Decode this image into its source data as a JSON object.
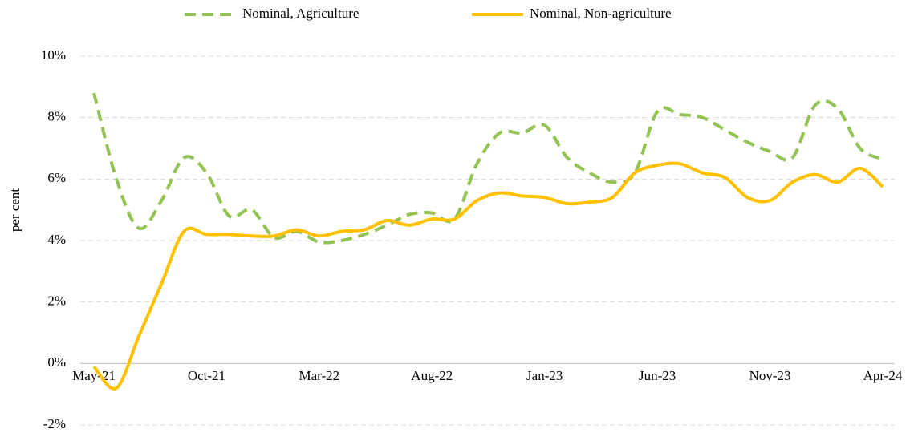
{
  "chart_data": {
    "type": "line",
    "y_label": "per cent",
    "categories": [
      "May-21",
      null,
      null,
      null,
      null,
      "Oct-21",
      null,
      null,
      null,
      null,
      "Mar-22",
      null,
      null,
      null,
      null,
      "Aug-22",
      null,
      null,
      null,
      null,
      "Jan-23",
      null,
      null,
      null,
      null,
      "Jun-23",
      null,
      null,
      null,
      null,
      "Nov-23",
      null,
      null,
      null,
      null,
      "Apr-24"
    ],
    "series": [
      {
        "name": "Nominal, Agriculture",
        "color": "#92c353",
        "dashed": true,
        "values": [
          8.8,
          6.0,
          4.4,
          5.3,
          6.7,
          6.2,
          4.8,
          5.0,
          4.1,
          4.3,
          3.95,
          4.0,
          4.2,
          4.5,
          4.85,
          4.9,
          4.7,
          6.5,
          7.5,
          7.5,
          7.75,
          6.7,
          6.2,
          5.9,
          6.2,
          8.2,
          8.1,
          8.0,
          7.6,
          7.2,
          6.9,
          6.7,
          8.4,
          8.3,
          7.0,
          6.65
        ]
      },
      {
        "name": "Nominal, Non-agriculture",
        "color": "#ffc000",
        "dashed": false,
        "values": [
          -0.1,
          -0.8,
          0.9,
          2.6,
          4.3,
          4.2,
          4.2,
          4.15,
          4.15,
          4.35,
          4.15,
          4.3,
          4.35,
          4.65,
          4.5,
          4.7,
          4.7,
          5.3,
          5.55,
          5.45,
          5.4,
          5.2,
          5.25,
          5.4,
          6.2,
          6.45,
          6.5,
          6.2,
          6.05,
          5.4,
          5.3,
          5.9,
          6.15,
          5.9,
          6.35,
          5.75
        ]
      }
    ],
    "ylim": [
      -2,
      10
    ],
    "yticks": [
      {
        "value": -2,
        "label": "-2%"
      },
      {
        "value": 0,
        "label": "0%"
      },
      {
        "value": 2,
        "label": "2%"
      },
      {
        "value": 4,
        "label": "4%"
      },
      {
        "value": 6,
        "label": "6%"
      },
      {
        "value": 8,
        "label": "8%"
      },
      {
        "value": 10,
        "label": "10%"
      }
    ],
    "grid": true,
    "legend": "top"
  }
}
